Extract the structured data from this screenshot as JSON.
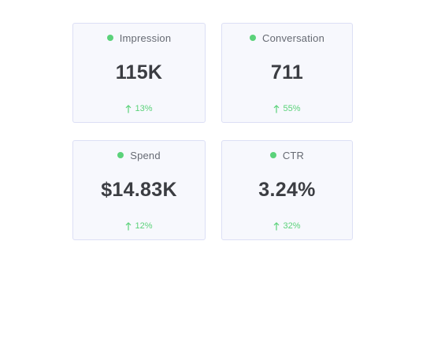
{
  "colors": {
    "accent_dot": "#5bd27a",
    "positive_change": "#5bd27a"
  },
  "cards": [
    {
      "label": "Impression",
      "value": "115K",
      "change": "13%",
      "change_icon": "arrow-up-icon"
    },
    {
      "label": "Conversation",
      "value": "711",
      "change": "55%",
      "change_icon": "arrow-up-icon"
    },
    {
      "label": "Spend",
      "value": "$14.83K",
      "change": "12%",
      "change_icon": "arrow-up-icon"
    },
    {
      "label": "CTR",
      "value": "3.24%",
      "change": "32%",
      "change_icon": "arrow-up-icon"
    }
  ]
}
